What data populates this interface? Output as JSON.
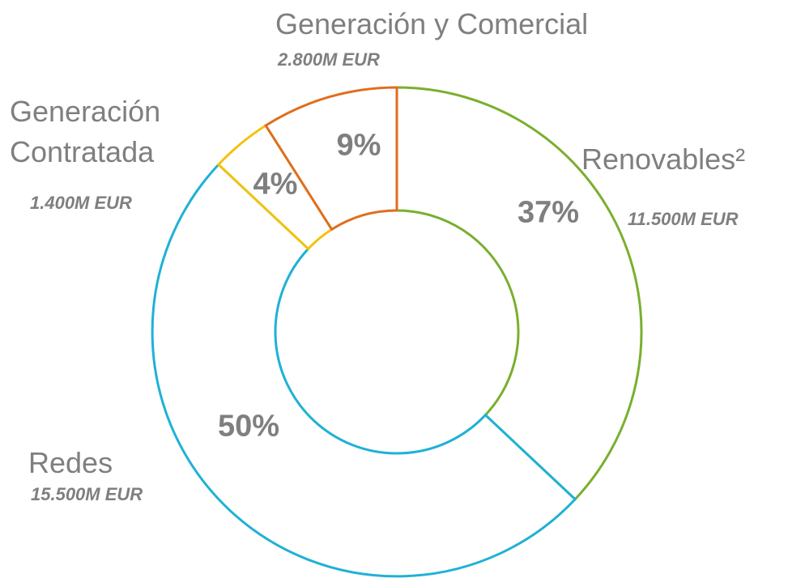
{
  "chart_data": {
    "type": "donut",
    "categories": [
      "Renovables²",
      "Redes",
      "Generación Contratada",
      "Generación y Comercial"
    ],
    "values": [
      37,
      50,
      4,
      9
    ],
    "value_labels": [
      "37%",
      "50%",
      "4%",
      "9%"
    ],
    "amount_labels": [
      "11.500M EUR",
      "15.500M EUR",
      "1.400M EUR",
      "2.800M EUR"
    ],
    "colors": [
      "#7aaf2e",
      "#1fb1d6",
      "#f4c20d",
      "#df6e1e"
    ]
  }
}
